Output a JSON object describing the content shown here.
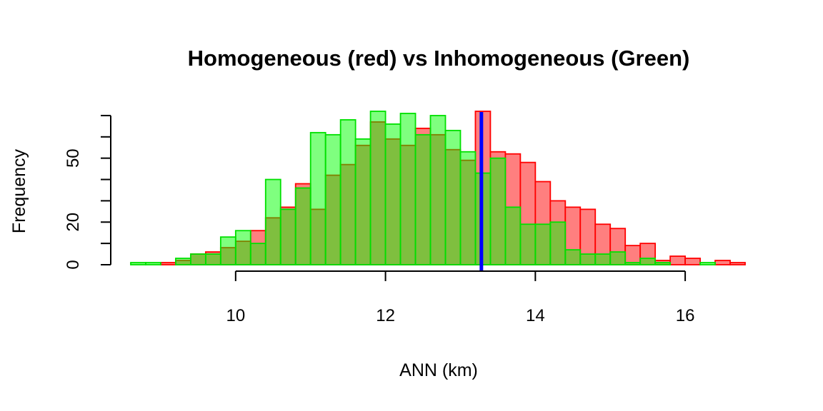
{
  "chart_data": {
    "type": "histogram",
    "title": "Homogeneous (red) vs Inhomogeneous (Green)",
    "xlabel": "ANN (km)",
    "ylabel": "Frequency",
    "xlim": [
      8.6,
      16.8
    ],
    "ylim": [
      0,
      74
    ],
    "x_ticks": [
      10,
      12,
      14,
      16
    ],
    "y_ticks": [
      0,
      20,
      50
    ],
    "y_tick_marks": [
      0,
      10,
      20,
      30,
      40,
      50,
      60,
      70
    ],
    "bin_width": 0.2,
    "series": [
      {
        "name": "Homogeneous (red)",
        "fill_color": "#ff7f7f",
        "border_color": "#ff0000",
        "bins_start": 8.6,
        "values": [
          0,
          0,
          1,
          2,
          5,
          6,
          8,
          11,
          16,
          22,
          27,
          38,
          26,
          42,
          47,
          56,
          67,
          59,
          56,
          64,
          61,
          54,
          49,
          72,
          53,
          52,
          48,
          39,
          30,
          27,
          26,
          19,
          17,
          9,
          10,
          2,
          4,
          3,
          0,
          2,
          1
        ]
      },
      {
        "name": "Inhomogeneous (Green)",
        "fill_color": "#00ff00",
        "fill_opacity": 0.5,
        "border_color": "#00e000",
        "bins_start": 8.6,
        "values": [
          1,
          1,
          0,
          3,
          5,
          5,
          13,
          16,
          10,
          40,
          26,
          36,
          62,
          61,
          68,
          59,
          72,
          66,
          71,
          61,
          70,
          63,
          53,
          43,
          50,
          27,
          19,
          19,
          20,
          7,
          5,
          5,
          6,
          1,
          3,
          1,
          0,
          0,
          1,
          0,
          0
        ]
      }
    ],
    "reference_line": {
      "x": 13.28,
      "color": "#0000ff"
    }
  },
  "colors": {
    "axis": "#000000",
    "background": "#ffffff"
  }
}
